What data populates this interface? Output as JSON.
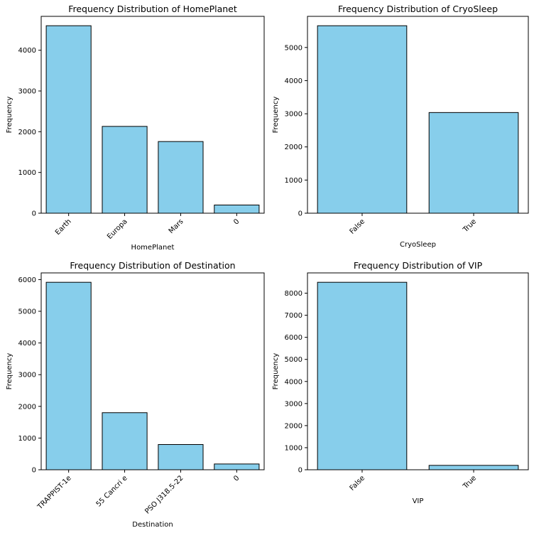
{
  "chart_data": [
    {
      "type": "bar",
      "title": "Frequency Distribution of HomePlanet",
      "xlabel": "HomePlanet",
      "ylabel": "Frequency",
      "categories": [
        "Earth",
        "Europa",
        "Mars",
        "0"
      ],
      "values": [
        4602,
        2131,
        1759,
        201
      ],
      "ylim": [
        0,
        4832
      ],
      "yticks": [
        0,
        1000,
        2000,
        3000,
        4000
      ],
      "bar_color": "#87ceeb",
      "edge_color": "#000000"
    },
    {
      "type": "bar",
      "title": "Frequency Distribution of CryoSleep",
      "xlabel": "CryoSleep",
      "ylabel": "Frequency",
      "categories": [
        "False",
        "True"
      ],
      "values": [
        5656,
        3037
      ],
      "ylim": [
        0,
        5939
      ],
      "yticks": [
        0,
        1000,
        2000,
        3000,
        4000,
        5000
      ],
      "bar_color": "#87ceeb",
      "edge_color": "#000000"
    },
    {
      "type": "bar",
      "title": "Frequency Distribution of Destination",
      "xlabel": "Destination",
      "ylabel": "Frequency",
      "categories": [
        "TRAPPIST-1e",
        "55 Cancri e",
        "PSO J318.5-22",
        "0"
      ],
      "values": [
        5915,
        1800,
        796,
        182
      ],
      "ylim": [
        0,
        6211
      ],
      "yticks": [
        0,
        1000,
        2000,
        3000,
        4000,
        5000,
        6000
      ],
      "bar_color": "#87ceeb",
      "edge_color": "#000000"
    },
    {
      "type": "bar",
      "title": "Frequency Distribution of VIP",
      "xlabel": "VIP",
      "ylabel": "Frequency",
      "categories": [
        "False",
        "True"
      ],
      "values": [
        8494,
        199
      ],
      "ylim": [
        0,
        8919
      ],
      "yticks": [
        0,
        1000,
        2000,
        3000,
        4000,
        5000,
        6000,
        7000,
        8000
      ],
      "bar_color": "#87ceeb",
      "edge_color": "#000000"
    }
  ]
}
